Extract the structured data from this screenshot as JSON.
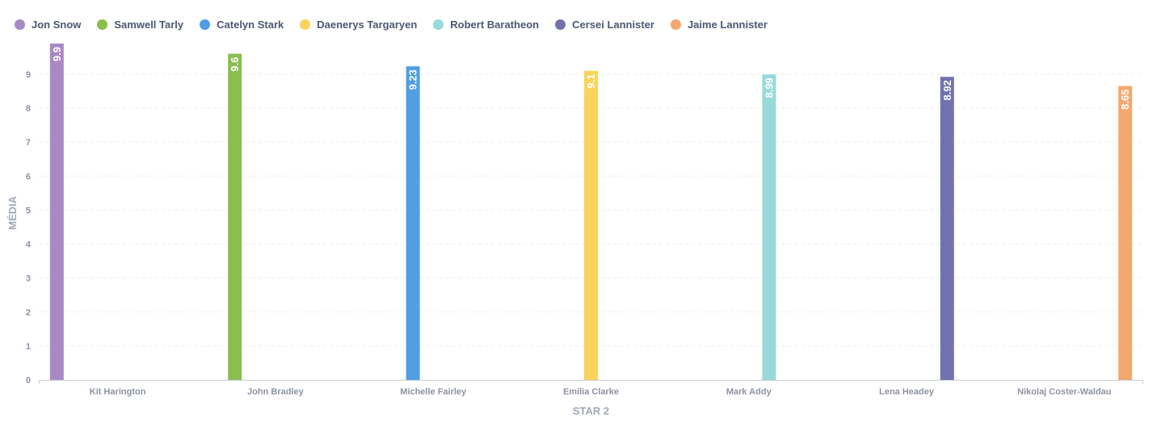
{
  "chart_data": {
    "type": "bar",
    "xlabel": "STAR 2",
    "ylabel": "MÉDIA",
    "ylim": [
      0,
      9.9
    ],
    "yticks": [
      0,
      1,
      2,
      3,
      4,
      5,
      6,
      7,
      8,
      9
    ],
    "grid": true,
    "legend_position": "top-left",
    "categories": [
      "Kit Harington",
      "John Bradley",
      "Michelle Fairley",
      "Emilia Clarke",
      "Mark Addy",
      "Lena Headey",
      "Nikolaj Coster-Waldau"
    ],
    "series": [
      {
        "name": "Jon Snow",
        "color": "#a989c5",
        "category": "Kit Harington",
        "value": 9.9,
        "label": "9.9"
      },
      {
        "name": "Samwell Tarly",
        "color": "#88bf4d",
        "category": "John Bradley",
        "value": 9.6,
        "label": "9.6"
      },
      {
        "name": "Catelyn Stark",
        "color": "#509ee3",
        "category": "Michelle Fairley",
        "value": 9.23,
        "label": "9.23"
      },
      {
        "name": "Daenerys Targaryen",
        "color": "#f9d45c",
        "category": "Emilia Clarke",
        "value": 9.1,
        "label": "9.1"
      },
      {
        "name": "Robert Baratheon",
        "color": "#98d9d9",
        "category": "Mark Addy",
        "value": 8.99,
        "label": "8.99"
      },
      {
        "name": "Cersei Lannister",
        "color": "#7172ad",
        "category": "Lena Headey",
        "value": 8.92,
        "label": "8.92"
      },
      {
        "name": "Jaime Lannister",
        "color": "#f2a86f",
        "category": "Nikolaj Coster-Waldau",
        "value": 8.65,
        "label": "8.65"
      }
    ]
  }
}
